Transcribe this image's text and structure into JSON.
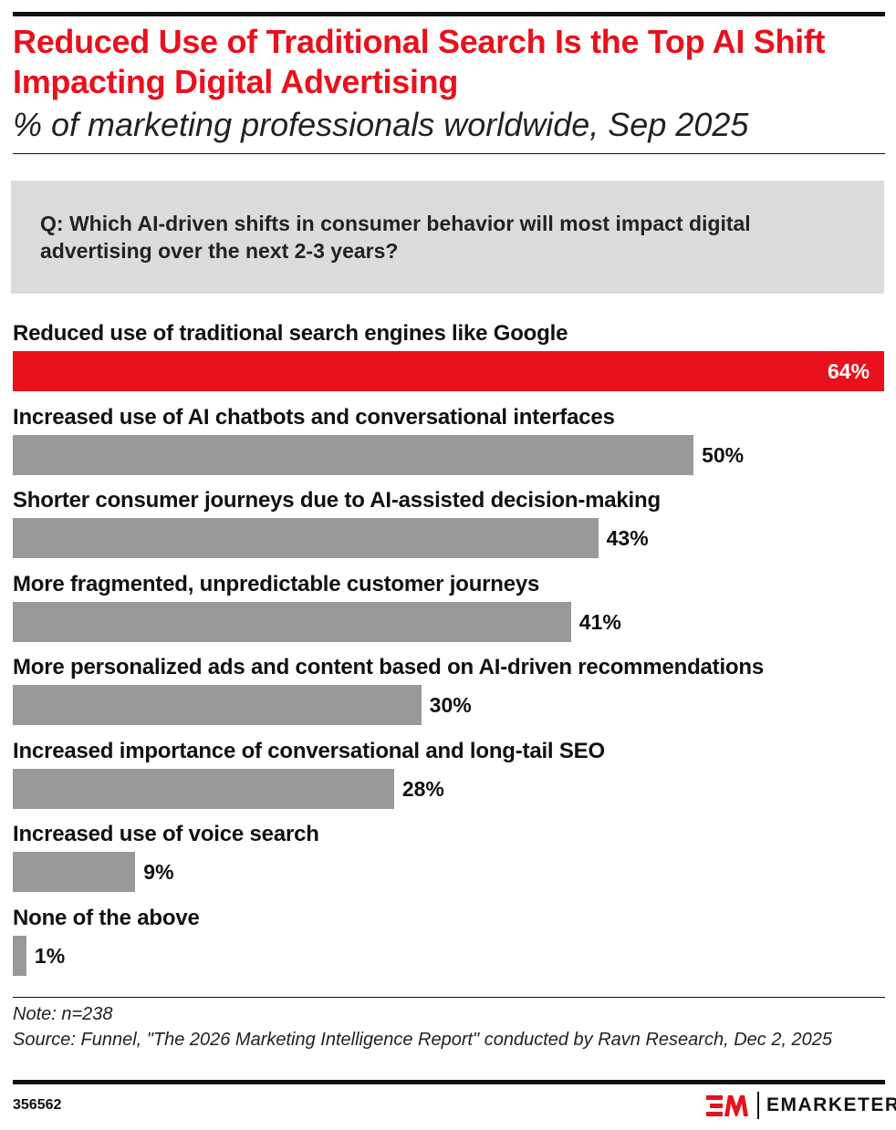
{
  "chart_data": {
    "type": "bar",
    "orientation": "horizontal",
    "title": "Reduced Use of Traditional Search Is the Top AI Shift Impacting Digital Advertising",
    "subtitle": "% of marketing professionals worldwide, Sep 2025",
    "question": "Q: Which AI-driven shifts in consumer behavior will most impact digital advertising over the next 2-3 years?",
    "categories": [
      "Reduced use of traditional search engines like Google",
      "Increased use of AI chatbots and conversational interfaces",
      "Shorter consumer journeys due to AI-assisted decision-making",
      "More fragmented, unpredictable customer journeys",
      "More personalized ads and content based on AI-driven recommendations",
      "Increased importance of conversational and long-tail SEO",
      "Increased use of voice search",
      "None of the above"
    ],
    "values": [
      64,
      50,
      43,
      41,
      30,
      28,
      9,
      1
    ],
    "value_labels": [
      "64%",
      "50%",
      "43%",
      "41%",
      "30%",
      "28%",
      "9%",
      "1%"
    ],
    "highlight_color": "#e8111c",
    "bar_color": "#999999",
    "xlim": [
      0,
      64
    ],
    "grid": false
  },
  "footer": {
    "note": "Note: n=238",
    "source": "Source: Funnel, \"The 2026 Marketing Intelligence Report\" conducted by Ravn Research, Dec 2, 2025",
    "chart_id": "356562",
    "brand": "EMARKETER"
  }
}
